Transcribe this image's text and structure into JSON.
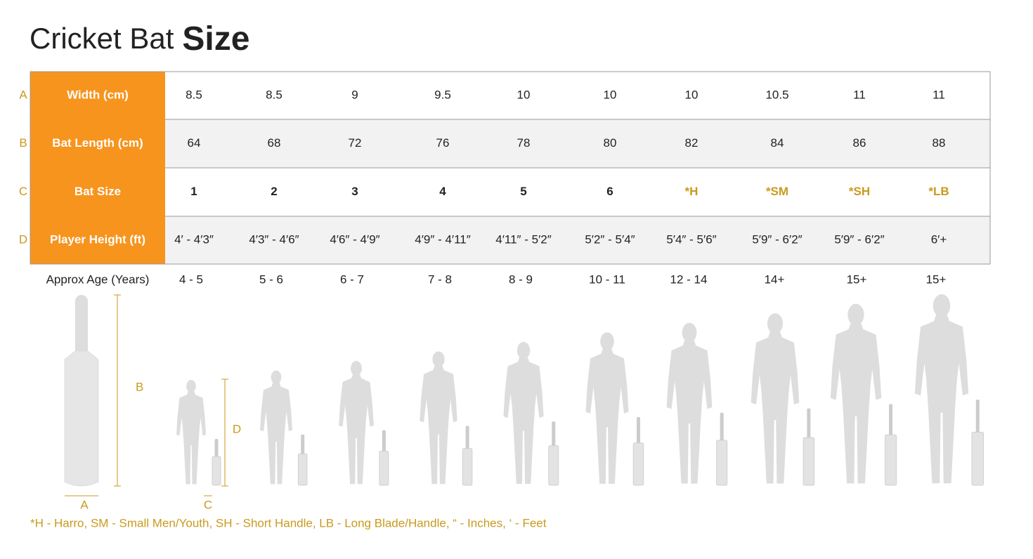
{
  "title": {
    "light": "Cricket Bat",
    "bold": "Size"
  },
  "table": {
    "rows": [
      {
        "letter": "A",
        "header": "Width (cm)",
        "cells": [
          "8.5",
          "8.5",
          "9",
          "9.5",
          "10",
          "10",
          "10",
          "10.5",
          "11",
          "11"
        ]
      },
      {
        "letter": "B",
        "header": "Bat Length (cm)",
        "cells": [
          "64",
          "68",
          "72",
          "76",
          "78",
          "80",
          "82",
          "84",
          "86",
          "88"
        ]
      },
      {
        "letter": "C",
        "header": "Bat Size",
        "cells": [
          "1",
          "2",
          "3",
          "4",
          "5",
          "6",
          "*H",
          "*SM",
          "*SH",
          "*LB"
        ]
      },
      {
        "letter": "D",
        "header": "Player Height (ft)",
        "cells": [
          "4′ - 4′3″",
          "4′3″ - 4′6″",
          "4′6″ - 4′9″",
          "4′9″ - 4′11″",
          "4′11″ - 5′2″",
          "5′2″ - 5′4″",
          "5′4″ - 5′6″",
          "5′9″ - 6′2″",
          "5′9″ - 6′2″",
          "6′+"
        ]
      }
    ]
  },
  "age": {
    "label": "Approx Age (Years)",
    "values": [
      "4 - 5",
      "5 - 6",
      "6 - 7",
      "7 - 8",
      "8 - 9",
      "10 - 11",
      "12 - 14",
      "14+",
      "15+",
      "15+"
    ]
  },
  "diagram": {
    "bat_width": "A",
    "bat_length": "B",
    "handle": "C",
    "player_height": "D"
  },
  "footnote": "*H - Harro, SM - Small Men/Youth, SH - Short Handle,  LB - Long Blade/Handle, “ - Inches, ‘ - Feet"
}
